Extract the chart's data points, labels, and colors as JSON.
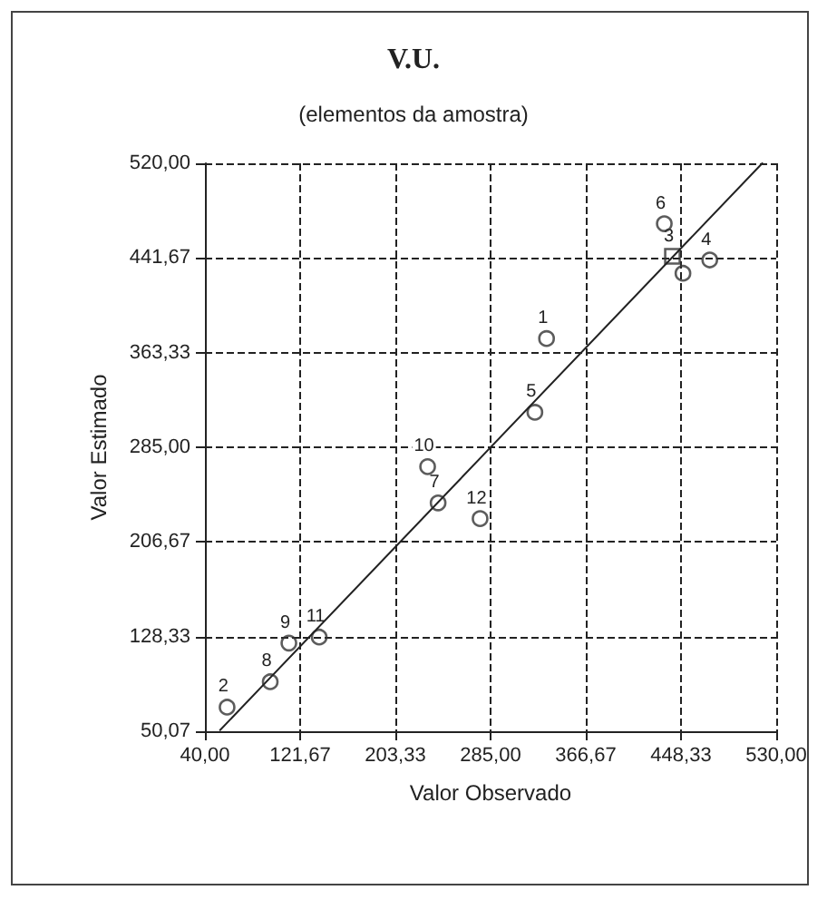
{
  "chart_data": {
    "type": "scatter",
    "title": "V.U.",
    "subtitle": "(elementos da amostra)",
    "xlabel": "Valor Observado",
    "ylabel": "Valor Estimado",
    "xlim": [
      40,
      530
    ],
    "ylim": [
      50.07,
      520
    ],
    "xticks": [
      {
        "value": 40,
        "label": "40,00"
      },
      {
        "value": 121.67,
        "label": "121,67"
      },
      {
        "value": 203.33,
        "label": "203,33"
      },
      {
        "value": 285,
        "label": "285,00"
      },
      {
        "value": 366.67,
        "label": "366,67"
      },
      {
        "value": 448.33,
        "label": "448,33"
      },
      {
        "value": 530,
        "label": "530,00"
      }
    ],
    "yticks": [
      {
        "value": 50.07,
        "label": "50,07"
      },
      {
        "value": 128.33,
        "label": "128,33"
      },
      {
        "value": 206.67,
        "label": "206,67"
      },
      {
        "value": 285,
        "label": "285,00"
      },
      {
        "value": 363.33,
        "label": "363,33"
      },
      {
        "value": 441.67,
        "label": "441,67"
      },
      {
        "value": 520,
        "label": "520,00"
      }
    ],
    "grid": true,
    "marker": "circle",
    "series": [
      {
        "color": "#333333",
        "x": [
          333,
          59,
          473,
          323,
          434,
          240,
          96,
          112,
          231,
          138,
          276,
          450
        ],
        "values": [
          375,
          70,
          440,
          314,
          470,
          239,
          91,
          123,
          269,
          128,
          226,
          429
        ]
      },
      {
        "color": "#333333",
        "marker": "square",
        "x": [
          441
        ],
        "values": [
          443
        ]
      },
      {
        "type": "line",
        "color": "#222222",
        "marker": "none",
        "x": [
          53,
          518
        ],
        "values": [
          51,
          520
        ]
      }
    ],
    "annotations": [
      {
        "text": "1",
        "x": 333,
        "y": 375
      },
      {
        "text": "2",
        "x": 59,
        "y": 70
      },
      {
        "text": "3",
        "x": 441,
        "y": 443
      },
      {
        "text": "4",
        "x": 473,
        "y": 440
      },
      {
        "text": "5",
        "x": 323,
        "y": 314
      },
      {
        "text": "6",
        "x": 434,
        "y": 470
      },
      {
        "text": "7",
        "x": 240,
        "y": 239
      },
      {
        "text": "8",
        "x": 96,
        "y": 91
      },
      {
        "text": "9",
        "x": 112,
        "y": 123
      },
      {
        "text": "10",
        "x": 231,
        "y": 269
      },
      {
        "text": "11",
        "x": 138,
        "y": 128
      },
      {
        "text": "12",
        "x": 276,
        "y": 226
      }
    ]
  }
}
